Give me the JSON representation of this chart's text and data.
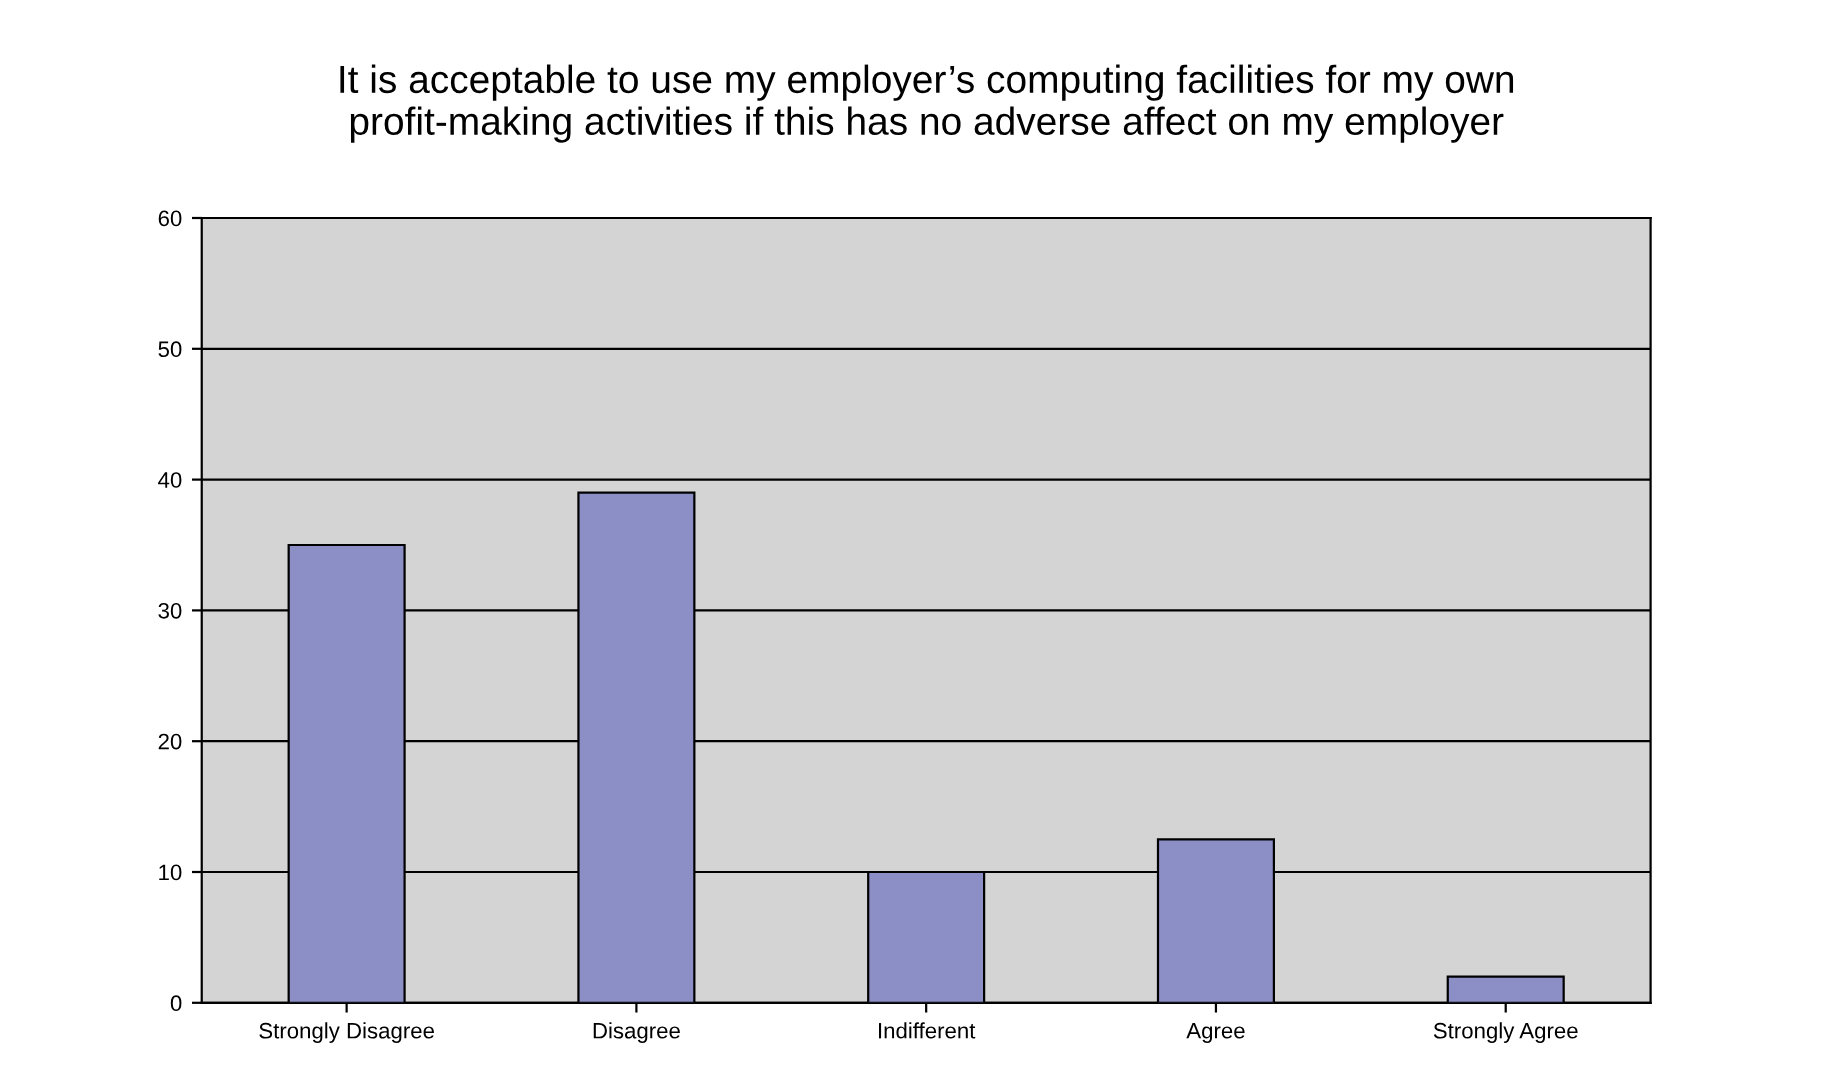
{
  "chart_data": {
    "type": "bar",
    "title": "It is acceptable to use my employer’s computing facilities for my own\nprofit-making activities if this has no adverse affect on my employer",
    "categories": [
      "Strongly Disagree",
      "Disagree",
      "Indifferent",
      "Agree",
      "Strongly Agree"
    ],
    "values": [
      35,
      39,
      10,
      12.5,
      2
    ],
    "color": "#8c8fc6",
    "ylim": [
      0,
      60
    ],
    "yticks": [
      0,
      10,
      20,
      30,
      40,
      50,
      60
    ],
    "grid": "y"
  }
}
